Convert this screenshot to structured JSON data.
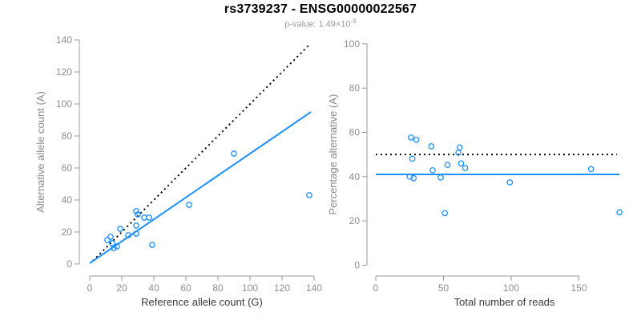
{
  "header": {
    "title": "rs3739237 - ENSG00000022567",
    "pvalue": {
      "label": "p-value:",
      "coefficient": "1.49",
      "times": "×10",
      "exponent": "-9"
    }
  },
  "colors": {
    "accent": "#1E90FF",
    "axis": "#9a9a9a",
    "tick_label": "#8e8e8e",
    "axis_title": "#3a3a3a",
    "y_axis_title": "#8a8a8a",
    "title": "#000000",
    "subtitle": "#9a9a9a",
    "dotted_line": "#000000"
  },
  "chart_data": [
    {
      "type": "scatter",
      "panel": "left",
      "xlabel": "Reference allele count (G)",
      "ylabel": "Alternative allele count (A)",
      "xlim": [
        0,
        140
      ],
      "ylim": [
        0,
        140
      ],
      "xticks": [
        0,
        20,
        40,
        60,
        80,
        100,
        120,
        140
      ],
      "yticks": [
        0,
        20,
        40,
        60,
        80,
        100,
        120,
        140
      ],
      "grid": false,
      "legend": "none",
      "point_color": "#1E90FF",
      "points": [
        [
          11,
          15
        ],
        [
          13,
          17
        ],
        [
          14,
          13
        ],
        [
          15,
          10
        ],
        [
          17,
          11
        ],
        [
          19,
          22
        ],
        [
          24,
          18
        ],
        [
          29,
          19
        ],
        [
          29,
          24
        ],
        [
          30,
          31
        ],
        [
          29,
          33
        ],
        [
          34,
          29
        ],
        [
          37,
          29
        ],
        [
          39,
          12
        ],
        [
          62,
          37
        ],
        [
          90,
          69
        ],
        [
          137,
          43
        ]
      ],
      "lines": [
        {
          "name": "identity-line",
          "style": "dotted",
          "color": "#000000",
          "x1": 2,
          "y1": 2,
          "x2": 137.5,
          "y2": 137.5
        },
        {
          "name": "regression-line",
          "style": "solid",
          "color": "#1E90FF",
          "x1": 0,
          "y1": 0.5,
          "x2": 138,
          "y2": 95
        }
      ]
    },
    {
      "type": "scatter",
      "panel": "right",
      "xlabel": "Total number of reads",
      "ylabel": "Percentage alternative (A)",
      "xlim": [
        0,
        190
      ],
      "ylim": [
        0,
        100
      ],
      "xticks": [
        0,
        50,
        100,
        150
      ],
      "yticks": [
        0,
        20,
        40,
        60,
        80,
        100
      ],
      "grid": false,
      "legend": "none",
      "point_color": "#1E90FF",
      "points": [
        [
          26,
          57.7
        ],
        [
          30,
          56.7
        ],
        [
          27,
          48.1
        ],
        [
          25,
          40
        ],
        [
          28,
          39.3
        ],
        [
          41,
          53.7
        ],
        [
          42,
          42.9
        ],
        [
          48,
          39.6
        ],
        [
          53,
          45.3
        ],
        [
          61,
          50.8
        ],
        [
          62,
          53.2
        ],
        [
          63,
          46
        ],
        [
          66,
          43.9
        ],
        [
          51,
          23.5
        ],
        [
          99,
          37.4
        ],
        [
          159,
          43.4
        ],
        [
          180,
          23.9
        ]
      ],
      "lines": [
        {
          "name": "fifty-percent-line",
          "style": "dotted",
          "color": "#000000",
          "x1": 0,
          "y1": 50,
          "x2": 178,
          "y2": 50
        },
        {
          "name": "mean-percentage-line",
          "style": "solid",
          "color": "#1E90FF",
          "x1": 0,
          "y1": 41,
          "x2": 180,
          "y2": 41
        }
      ]
    }
  ]
}
